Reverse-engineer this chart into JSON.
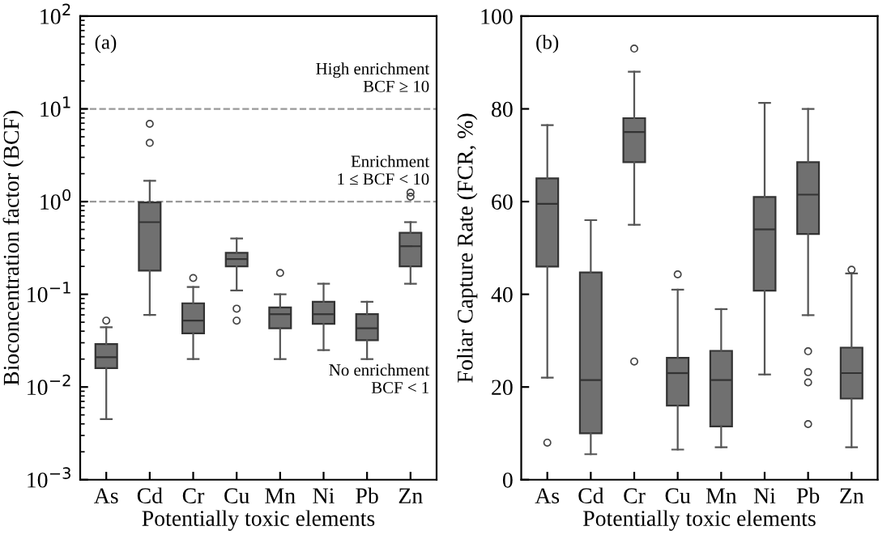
{
  "chart_data": [
    {
      "type": "box",
      "xlabel": "Potentially toxic elements",
      "ylabel": "Bioconcentration factor (BCF)",
      "log": "y",
      "ylim": [
        0.001,
        100
      ],
      "yticks": [
        {
          "value": 0.001,
          "label": "10$^{−3}$"
        },
        {
          "value": 0.01,
          "label": "10$^{−2}$"
        },
        {
          "value": 0.1,
          "label": "10$^{−1}$"
        },
        {
          "value": 1,
          "label": "10$^{0}$"
        },
        {
          "value": 10,
          "label": "10$^{1}$"
        },
        {
          "value": 100,
          "label": "10$^{2}$"
        }
      ],
      "categories": [
        "As",
        "Cd",
        "Cr",
        "Cu",
        "Mn",
        "Ni",
        "Pb",
        "Zn"
      ],
      "color": "#707070",
      "boxes": [
        {
          "low": 0.0045,
          "q1": 0.016,
          "median": 0.021,
          "q3": 0.029,
          "high": 0.044,
          "outliers": [
            0.052
          ]
        },
        {
          "low": 0.06,
          "q1": 0.18,
          "median": 0.6,
          "q3": 0.98,
          "high": 1.68,
          "outliers": [
            4.3,
            6.9
          ]
        },
        {
          "low": 0.02,
          "q1": 0.038,
          "median": 0.052,
          "q3": 0.08,
          "high": 0.12,
          "outliers": [
            0.15
          ]
        },
        {
          "low": 0.11,
          "q1": 0.2,
          "median": 0.24,
          "q3": 0.28,
          "high": 0.4,
          "outliers": [
            0.052,
            0.07
          ]
        },
        {
          "low": 0.02,
          "q1": 0.043,
          "median": 0.061,
          "q3": 0.072,
          "high": 0.1,
          "outliers": [
            0.17
          ]
        },
        {
          "low": 0.025,
          "q1": 0.048,
          "median": 0.061,
          "q3": 0.083,
          "high": 0.13
        },
        {
          "low": 0.02,
          "q1": 0.032,
          "median": 0.043,
          "q3": 0.061,
          "high": 0.083
        },
        {
          "low": 0.13,
          "q1": 0.2,
          "median": 0.33,
          "q3": 0.46,
          "high": 0.6,
          "outliers": [
            1.13,
            1.25
          ]
        }
      ],
      "ref_lines": [
        {
          "axis": "y",
          "value": 10,
          "line_style": "dashed",
          "color": "#999999"
        },
        {
          "axis": "y",
          "value": 1,
          "line_style": "dashed",
          "color": "#999999"
        }
      ],
      "annotations": [
        "(a)",
        "High enrichment\nBCF ≥ 10",
        "Enrichment\n1 ≤ BCF < 10",
        "No enrichment\nBCF < 1"
      ],
      "grid": false
    },
    {
      "type": "box",
      "xlabel": "Potentially toxic elements",
      "ylabel": "Foliar Capture Rate (FCR, %)",
      "ylim": [
        0,
        100
      ],
      "yticks": [
        0,
        20,
        40,
        60,
        80,
        100
      ],
      "categories": [
        "As",
        "Cd",
        "Cr",
        "Cu",
        "Mn",
        "Ni",
        "Pb",
        "Zn"
      ],
      "color": "#707070",
      "boxes": [
        {
          "low": 22,
          "q1": 46,
          "median": 59.5,
          "q3": 65,
          "high": 76.5,
          "outliers": [
            8
          ]
        },
        {
          "low": 5.5,
          "q1": 10,
          "median": 21.5,
          "q3": 44.7,
          "high": 56
        },
        {
          "low": 55,
          "q1": 68.5,
          "median": 75,
          "q3": 78,
          "high": 88,
          "outliers": [
            25.5,
            93
          ]
        },
        {
          "low": 6.5,
          "q1": 16,
          "median": 23,
          "q3": 26.3,
          "high": 41,
          "outliers": [
            44.3
          ]
        },
        {
          "low": 7,
          "q1": 11.5,
          "median": 21.5,
          "q3": 27.8,
          "high": 36.8
        },
        {
          "low": 22.7,
          "q1": 40.8,
          "median": 54,
          "q3": 61,
          "high": 81.3
        },
        {
          "low": 35.5,
          "q1": 53,
          "median": 61.5,
          "q3": 68.5,
          "high": 80,
          "outliers": [
            12,
            21,
            23.2,
            27.7
          ]
        },
        {
          "low": 7,
          "q1": 17.5,
          "median": 23,
          "q3": 28.5,
          "high": 44.5,
          "outliers": [
            45.3
          ]
        }
      ],
      "annotations": [
        "(b)"
      ],
      "grid": false
    }
  ]
}
